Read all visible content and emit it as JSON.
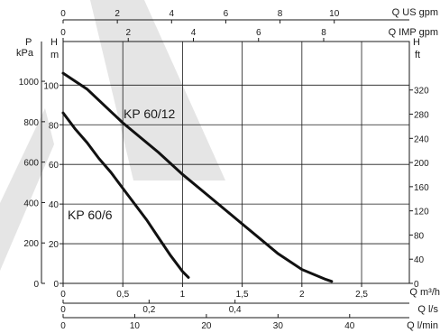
{
  "chart_data": {
    "type": "line",
    "title": "",
    "grid": true,
    "watermark_color": "#d0d0d0",
    "axes": {
      "flow_m3h": {
        "label": "Q m³/h",
        "ticks": [
          "0",
          "0,5",
          "1",
          "1,5",
          "2",
          "2,5"
        ],
        "values": [
          0,
          0.5,
          1,
          1.5,
          2,
          2.5
        ],
        "range": [
          0,
          2.9
        ]
      },
      "flow_ls": {
        "label": "Q l/s",
        "ticks": [
          "0",
          "0,2",
          "0,4"
        ],
        "values": [
          0,
          0.2,
          0.4
        ]
      },
      "flow_lmin": {
        "label": "Q l/min",
        "ticks": [
          "0",
          "10",
          "20",
          "30",
          "40"
        ],
        "values": [
          0,
          10,
          20,
          30,
          40
        ]
      },
      "flow_us_gpm": {
        "label": "Q US gpm",
        "ticks": [
          "0",
          "2",
          "4",
          "6",
          "8",
          "10"
        ],
        "values": [
          0,
          2,
          4,
          6,
          8,
          10
        ]
      },
      "flow_imp_gpm": {
        "label": "Q IMP gpm",
        "ticks": [
          "0",
          "2",
          "4",
          "6",
          "8"
        ],
        "values": [
          0,
          2,
          4,
          6,
          8
        ]
      },
      "head_m": {
        "label_top": "H",
        "label_unit": "m",
        "ticks": [
          "0",
          "20",
          "40",
          "60",
          "80",
          "100"
        ],
        "values": [
          0,
          20,
          40,
          60,
          80,
          100
        ],
        "range": [
          0,
          122
        ]
      },
      "pressure_kpa": {
        "label_top": "P",
        "label_unit": "kPa",
        "ticks": [
          "0",
          "200",
          "400",
          "600",
          "800",
          "1000"
        ],
        "values": [
          0,
          200,
          400,
          600,
          800,
          1000
        ]
      },
      "head_ft": {
        "label_top": "H",
        "label_unit": "ft",
        "ticks": [
          "0",
          "40",
          "80",
          "120",
          "160",
          "200",
          "240",
          "280",
          "320"
        ],
        "values": [
          0,
          40,
          80,
          120,
          160,
          200,
          240,
          280,
          320
        ]
      }
    },
    "series": [
      {
        "name": "KP 60/12",
        "x": [
          0,
          0.2,
          0.5,
          0.8,
          1.0,
          1.2,
          1.5,
          1.8,
          2.0,
          2.2,
          2.25
        ],
        "y": [
          106,
          98,
          81,
          66,
          55,
          45,
          30,
          15,
          7,
          2,
          1
        ]
      },
      {
        "name": "KP 60/6",
        "x": [
          0,
          0.1,
          0.2,
          0.3,
          0.4,
          0.5,
          0.6,
          0.7,
          0.8,
          0.9,
          1.0,
          1.05
        ],
        "y": [
          86,
          78,
          71,
          63,
          56,
          48,
          40,
          32,
          23,
          14,
          6,
          3
        ]
      }
    ]
  }
}
